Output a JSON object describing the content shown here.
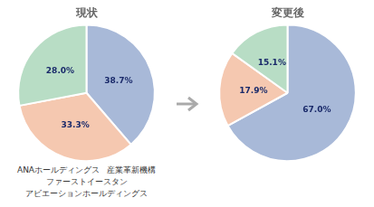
{
  "chart_data": [
    {
      "type": "pie",
      "title": "現状",
      "values": [
        38.7,
        33.3,
        28.0
      ],
      "value_labels": [
        "38.7%",
        "33.3%",
        "28.0%"
      ],
      "colors": [
        "#a8b9d8",
        "#f5c8b0",
        "#b8ddc5"
      ],
      "data_labels": true,
      "annotations": [
        "ANAホールディングス",
        "産業革新機構",
        "ファーストイースタン",
        "アビエーションホールディングス"
      ]
    },
    {
      "type": "pie",
      "title": "変更後",
      "values": [
        67.0,
        17.9,
        15.1
      ],
      "value_labels": [
        "67.0%",
        "17.9%",
        "15.1%"
      ],
      "colors": [
        "#a8b9d8",
        "#f5c8b0",
        "#b8ddc5"
      ],
      "data_labels": true
    }
  ]
}
